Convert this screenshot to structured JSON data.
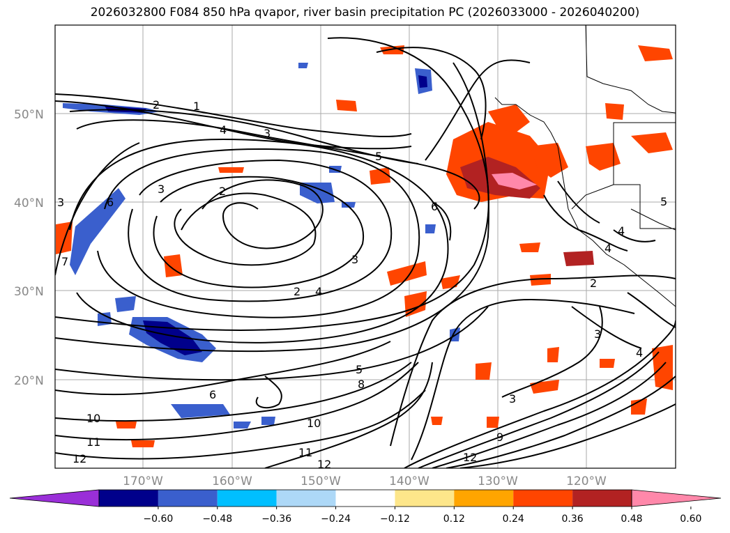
{
  "title": "2026032800 F084 850 hPa qvapor, river basin precipitation PC (2026033000 - 2026040200)",
  "map": {
    "lat_labels": [
      "50°N",
      "40°N",
      "30°N",
      "20°N"
    ],
    "lon_labels": [
      "170°W",
      "160°W",
      "150°W",
      "140°W",
      "130°W",
      "120°W"
    ],
    "contour_labels": [
      "2",
      "1",
      "4",
      "3",
      "5",
      "3",
      "2",
      "6",
      "3",
      "7",
      "3",
      "2",
      "4",
      "6",
      "5",
      "8",
      "10",
      "11",
      "12",
      "10",
      "11",
      "12",
      "3",
      "9",
      "12",
      "2",
      "3",
      "4",
      "4",
      "5",
      "6",
      "4"
    ]
  },
  "colorbar": {
    "ticks": [
      "−0.60",
      "−0.48",
      "−0.36",
      "−0.24",
      "−0.12",
      "0.12",
      "0.24",
      "0.36",
      "0.48",
      "0.60"
    ],
    "colors": [
      "#9a2fd8",
      "#00008b",
      "#3a5fcd",
      "#00bfff",
      "#add8f7",
      "#ffffff",
      "#fde68a",
      "#ffa500",
      "#ff4500",
      "#b22222",
      "#ff88aa"
    ]
  }
}
